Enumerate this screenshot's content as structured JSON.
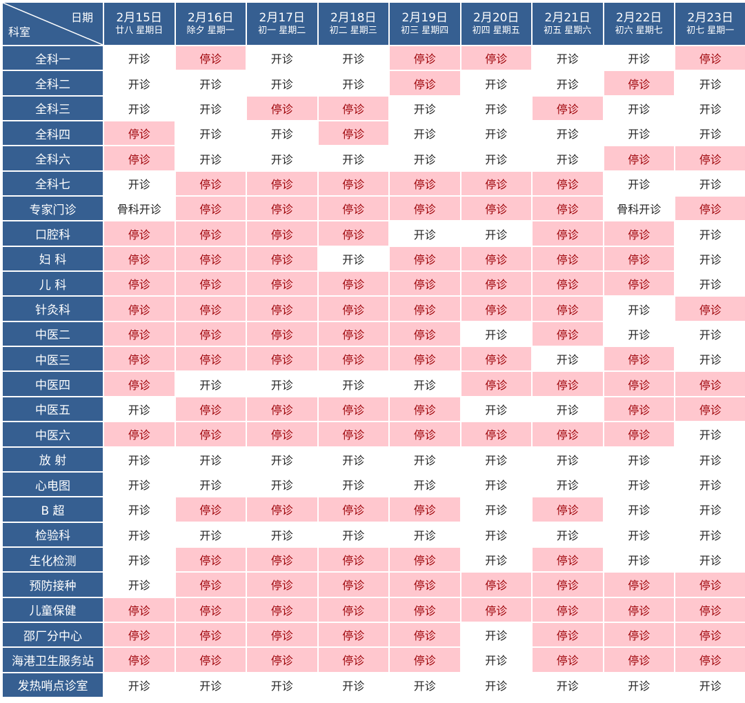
{
  "corner": {
    "top": "日期",
    "bottom": "科室"
  },
  "colors": {
    "header": "#365f91",
    "closed_bg": "#ffc7ce",
    "closed_text": "#9c0006"
  },
  "dates": [
    {
      "date": "2月15日",
      "sub": "廿八 星期日"
    },
    {
      "date": "2月16日",
      "sub": "除夕 星期一"
    },
    {
      "date": "2月17日",
      "sub": "初一 星期二"
    },
    {
      "date": "2月18日",
      "sub": "初二 星期三"
    },
    {
      "date": "2月19日",
      "sub": "初三 星期四"
    },
    {
      "date": "2月20日",
      "sub": "初四 星期五"
    },
    {
      "date": "2月21日",
      "sub": "初五 星期六"
    },
    {
      "date": "2月22日",
      "sub": "初六 星期七"
    },
    {
      "date": "2月23日",
      "sub": "初七 星期一"
    }
  ],
  "rows": [
    {
      "dept": "全科一",
      "status": [
        "开诊",
        "停诊",
        "开诊",
        "开诊",
        "停诊",
        "停诊",
        "开诊",
        "开诊",
        "停诊"
      ]
    },
    {
      "dept": "全科二",
      "status": [
        "开诊",
        "开诊",
        "开诊",
        "开诊",
        "停诊",
        "开诊",
        "开诊",
        "停诊",
        "开诊"
      ]
    },
    {
      "dept": "全科三",
      "status": [
        "开诊",
        "开诊",
        "停诊",
        "停诊",
        "开诊",
        "开诊",
        "停诊",
        "开诊",
        "开诊"
      ]
    },
    {
      "dept": "全科四",
      "status": [
        "停诊",
        "开诊",
        "开诊",
        "停诊",
        "开诊",
        "开诊",
        "开诊",
        "开诊",
        "开诊"
      ]
    },
    {
      "dept": "全科六",
      "status": [
        "停诊",
        "开诊",
        "开诊",
        "开诊",
        "开诊",
        "开诊",
        "开诊",
        "停诊",
        "停诊"
      ]
    },
    {
      "dept": "全科七",
      "status": [
        "开诊",
        "停诊",
        "停诊",
        "停诊",
        "停诊",
        "停诊",
        "停诊",
        "开诊",
        "开诊"
      ]
    },
    {
      "dept": "专家门诊",
      "status": [
        "骨科开诊",
        "停诊",
        "停诊",
        "停诊",
        "停诊",
        "停诊",
        "停诊",
        "骨科开诊",
        "停诊"
      ]
    },
    {
      "dept": "口腔科",
      "status": [
        "停诊",
        "停诊",
        "停诊",
        "停诊",
        "开诊",
        "开诊",
        "停诊",
        "停诊",
        "开诊"
      ]
    },
    {
      "dept": "妇 科",
      "status": [
        "停诊",
        "停诊",
        "停诊",
        "开诊",
        "停诊",
        "停诊",
        "停诊",
        "停诊",
        "开诊"
      ]
    },
    {
      "dept": "儿 科",
      "status": [
        "停诊",
        "停诊",
        "停诊",
        "停诊",
        "停诊",
        "停诊",
        "停诊",
        "停诊",
        "开诊"
      ]
    },
    {
      "dept": "针灸科",
      "status": [
        "停诊",
        "停诊",
        "停诊",
        "停诊",
        "停诊",
        "停诊",
        "停诊",
        "开诊",
        "停诊"
      ]
    },
    {
      "dept": "中医二",
      "status": [
        "停诊",
        "停诊",
        "停诊",
        "停诊",
        "停诊",
        "开诊",
        "停诊",
        "开诊",
        "开诊"
      ]
    },
    {
      "dept": "中医三",
      "status": [
        "停诊",
        "停诊",
        "停诊",
        "停诊",
        "停诊",
        "停诊",
        "开诊",
        "停诊",
        "开诊"
      ]
    },
    {
      "dept": "中医四",
      "status": [
        "停诊",
        "开诊",
        "开诊",
        "开诊",
        "开诊",
        "停诊",
        "停诊",
        "停诊",
        "停诊"
      ]
    },
    {
      "dept": "中医五",
      "status": [
        "开诊",
        "停诊",
        "停诊",
        "停诊",
        "停诊",
        "开诊",
        "开诊",
        "停诊",
        "停诊"
      ]
    },
    {
      "dept": "中医六",
      "status": [
        "停诊",
        "停诊",
        "停诊",
        "停诊",
        "停诊",
        "停诊",
        "停诊",
        "停诊",
        "开诊"
      ]
    },
    {
      "dept": "放 射",
      "status": [
        "开诊",
        "开诊",
        "开诊",
        "开诊",
        "开诊",
        "开诊",
        "开诊",
        "开诊",
        "开诊"
      ]
    },
    {
      "dept": "心电图",
      "status": [
        "开诊",
        "开诊",
        "开诊",
        "开诊",
        "开诊",
        "开诊",
        "开诊",
        "开诊",
        "开诊"
      ]
    },
    {
      "dept": "B 超",
      "status": [
        "开诊",
        "停诊",
        "停诊",
        "停诊",
        "停诊",
        "开诊",
        "停诊",
        "开诊",
        "开诊"
      ]
    },
    {
      "dept": "检验科",
      "status": [
        "开诊",
        "开诊",
        "开诊",
        "开诊",
        "开诊",
        "开诊",
        "开诊",
        "开诊",
        "开诊"
      ]
    },
    {
      "dept": "生化检测",
      "status": [
        "开诊",
        "停诊",
        "停诊",
        "停诊",
        "停诊",
        "开诊",
        "停诊",
        "开诊",
        "开诊"
      ]
    },
    {
      "dept": "预防接种",
      "status": [
        "开诊",
        "停诊",
        "停诊",
        "停诊",
        "停诊",
        "停诊",
        "停诊",
        "停诊",
        "停诊"
      ]
    },
    {
      "dept": "儿童保健",
      "status": [
        "停诊",
        "停诊",
        "停诊",
        "停诊",
        "停诊",
        "停诊",
        "停诊",
        "停诊",
        "停诊"
      ]
    },
    {
      "dept": "邵厂分中心",
      "status": [
        "停诊",
        "停诊",
        "停诊",
        "停诊",
        "停诊",
        "开诊",
        "停诊",
        "停诊",
        "停诊"
      ]
    },
    {
      "dept": "海港卫生服务站",
      "status": [
        "停诊",
        "停诊",
        "停诊",
        "停诊",
        "停诊",
        "开诊",
        "停诊",
        "停诊",
        "停诊"
      ]
    },
    {
      "dept": "发热哨点诊室",
      "status": [
        "开诊",
        "开诊",
        "开诊",
        "开诊",
        "开诊",
        "开诊",
        "开诊",
        "开诊",
        "开诊"
      ]
    }
  ]
}
